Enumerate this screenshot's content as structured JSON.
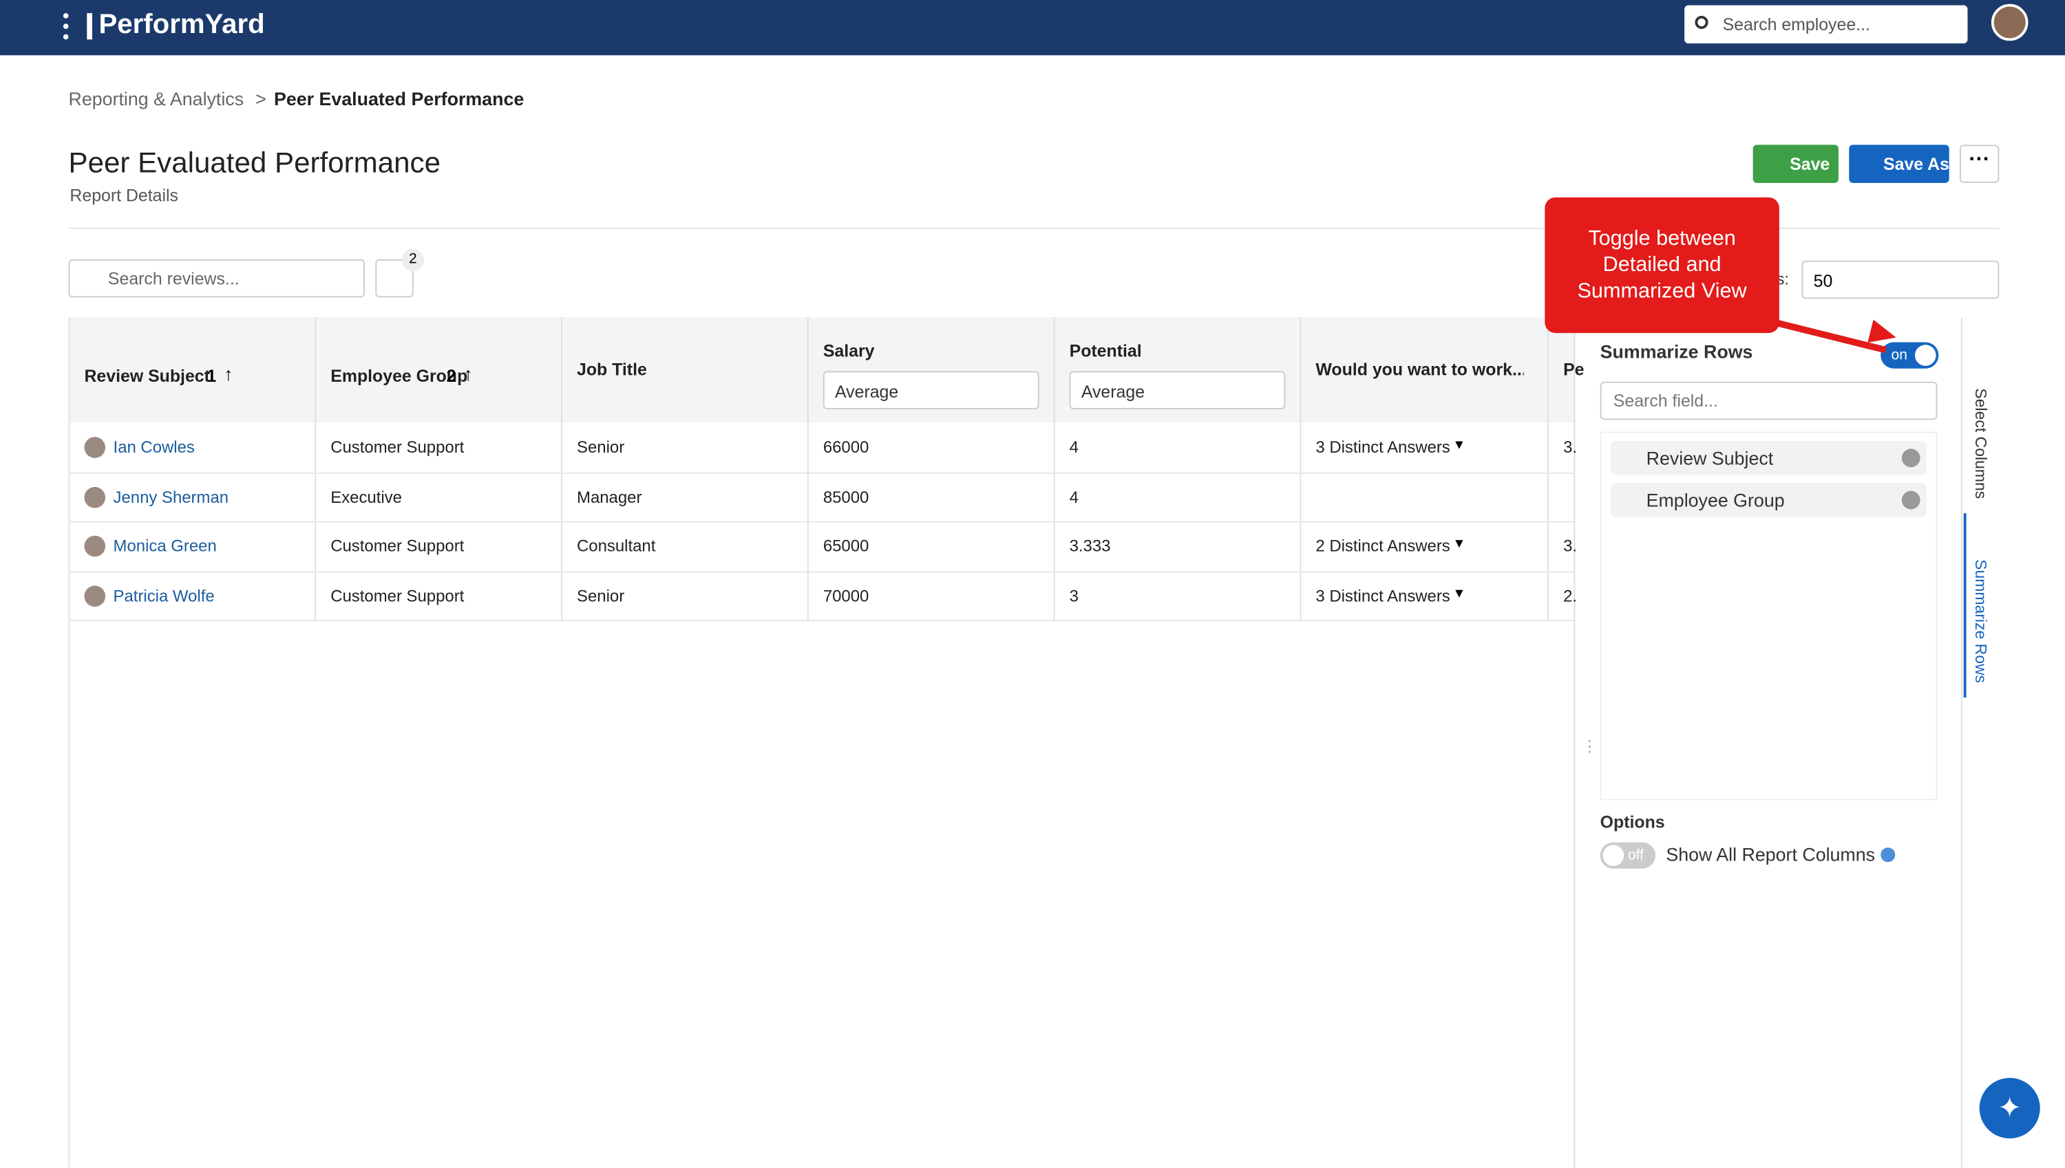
{
  "header": {
    "logo": "PerformYard",
    "search_placeholder": "Search employee..."
  },
  "breadcrumb": {
    "parent": "Reporting & Analytics",
    "current": "Peer Evaluated Performance"
  },
  "page": {
    "title": "Peer Evaluated Performance",
    "details": "Report Details",
    "buttons": {
      "save": "Save",
      "save_as": "Save As"
    }
  },
  "toolbar": {
    "search_placeholder": "Search reviews...",
    "filter_count": 2,
    "rows_label": "s:",
    "rows_value": 50
  },
  "callout": "Toggle between Detailed and Summarized View",
  "table": {
    "columns": [
      {
        "label": "Review Subject",
        "sort": 1
      },
      {
        "label": "Employee Group",
        "sort": 2
      },
      {
        "label": "Job Title"
      },
      {
        "label": "Salary",
        "aggregate": "Average"
      },
      {
        "label": "Potential",
        "aggregate": "Average"
      },
      {
        "label": "Would you want to work..."
      },
      {
        "label": "Pe"
      }
    ],
    "rows": [
      [
        "Ian Cowles",
        "Customer Support",
        "Senior",
        66000,
        4,
        "3 Distinct Answers",
        "3."
      ],
      [
        "Jenny Sherman",
        "Executive",
        "Manager",
        85000,
        4,
        null,
        null
      ],
      [
        "Monica Green",
        "Customer Support",
        "Consultant",
        65000,
        3.333,
        "2 Distinct Answers",
        "3."
      ],
      [
        "Patricia Wolfe",
        "Customer Support",
        "Senior",
        70000,
        3,
        "3 Distinct Answers",
        "2."
      ]
    ]
  },
  "panel": {
    "title": "Summarize Rows",
    "toggle": "on",
    "search_placeholder": "Search field...",
    "fields": [
      "Review Subject",
      "Employee Group"
    ],
    "options_title": "Options",
    "option_toggle": "off",
    "option_label": "Show All Report Columns"
  },
  "tabs": [
    "Select Columns",
    "Summarize Rows"
  ]
}
